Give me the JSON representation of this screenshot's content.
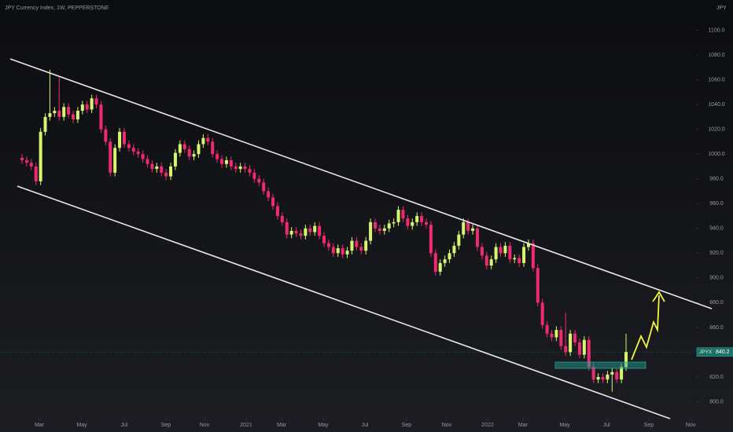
{
  "chart_data": {
    "type": "candlestick",
    "title": "JPY Currency Index, 1W, PEPPERSTONE",
    "currency": "JPY",
    "symbol": "JPYX",
    "colors": {
      "up": "#d8f56e",
      "down": "#f02a6f"
    },
    "grid": false,
    "xlim": [
      -4.74,
      145.06
    ],
    "xticks": [
      {
        "value": 3.72,
        "label": "Mar"
      },
      {
        "value": 12.86,
        "label": "May"
      },
      {
        "value": 22.0,
        "label": "Jul"
      },
      {
        "value": 30.97,
        "label": "Sep"
      },
      {
        "value": 39.27,
        "label": "Nov"
      },
      {
        "value": 48.24,
        "label": "2021"
      },
      {
        "value": 55.86,
        "label": "Mar"
      },
      {
        "value": 64.83,
        "label": "May"
      },
      {
        "value": 73.8,
        "label": "Jul"
      },
      {
        "value": 82.77,
        "label": "Sep"
      },
      {
        "value": 91.4,
        "label": "Nov"
      },
      {
        "value": 100.2,
        "label": "2022"
      },
      {
        "value": 107.8,
        "label": "Mar"
      },
      {
        "value": 116.8,
        "label": "May"
      },
      {
        "value": 125.8,
        "label": "Jul"
      },
      {
        "value": 134.9,
        "label": "Sep"
      },
      {
        "value": 143.9,
        "label": "Nov"
      }
    ],
    "ylim": [
      775.6,
      1124.4
    ],
    "yticks": [
      {
        "value": 800,
        "label": "800.0"
      },
      {
        "value": 820,
        "label": "820.0"
      },
      {
        "value": 840,
        "label": "840.0"
      },
      {
        "value": 860,
        "label": "860.0"
      },
      {
        "value": 880,
        "label": "880.0"
      },
      {
        "value": 900,
        "label": "900.0"
      },
      {
        "value": 920,
        "label": "920.0"
      },
      {
        "value": 940,
        "label": "940.0"
      },
      {
        "value": 960,
        "label": "960.0"
      },
      {
        "value": 980,
        "label": "980.0"
      },
      {
        "value": 1000,
        "label": "1000.0"
      },
      {
        "value": 1020,
        "label": "1020.0"
      },
      {
        "value": 1040,
        "label": "1040.0"
      },
      {
        "value": 1060,
        "label": "1060.0"
      },
      {
        "value": 1080,
        "label": "1080.0"
      },
      {
        "value": 1100,
        "label": "1100.0"
      }
    ],
    "open": [
      997,
      995,
      993,
      990,
      978,
      1018,
      1030,
      1033,
      1035,
      1030,
      1038,
      1032,
      1028,
      1035,
      1040,
      1036,
      1045,
      1040,
      1020,
      1010,
      985,
      1005,
      1018,
      1008,
      1005,
      1002,
      1000,
      996,
      992,
      988,
      990,
      985,
      982,
      990,
      1001,
      1008,
      1004,
      998,
      1000,
      1008,
      1013,
      1010,
      1000,
      996,
      992,
      995,
      990,
      988,
      990,
      988,
      985,
      980,
      977,
      970,
      965,
      958,
      950,
      945,
      935,
      938,
      936,
      934,
      940,
      937,
      942,
      934,
      928,
      925,
      920,
      924,
      919,
      922,
      930,
      925,
      922,
      930,
      945,
      940,
      938,
      940,
      944,
      945,
      955,
      948,
      942,
      945,
      950,
      945,
      943,
      920,
      905,
      912,
      915,
      920,
      926,
      935,
      945,
      938,
      940,
      925,
      918,
      910,
      915,
      925,
      920,
      926,
      915,
      916,
      912,
      925,
      928,
      908,
      880,
      862,
      855,
      852,
      858,
      845,
      840,
      855,
      848,
      838,
      850,
      828,
      818,
      820,
      818,
      822,
      824,
      818,
      828
    ],
    "high": [
      1000,
      998,
      996,
      993,
      1021,
      1033,
      1068,
      1038,
      1062,
      1041,
      1041,
      1035,
      1038,
      1043,
      1043,
      1048,
      1048,
      1043,
      1023,
      1013,
      1008,
      1021,
      1021,
      1011,
      1008,
      1005,
      1003,
      999,
      995,
      993,
      993,
      988,
      993,
      1004,
      1011,
      1011,
      1007,
      1003,
      1011,
      1016,
      1016,
      1013,
      1003,
      999,
      998,
      998,
      993,
      993,
      993,
      991,
      988,
      983,
      980,
      973,
      968,
      961,
      953,
      948,
      941,
      941,
      939,
      943,
      943,
      945,
      945,
      937,
      931,
      928,
      927,
      927,
      925,
      933,
      933,
      928,
      933,
      948,
      948,
      943,
      943,
      947,
      948,
      958,
      958,
      951,
      948,
      953,
      953,
      948,
      946,
      923,
      915,
      918,
      923,
      929,
      938,
      948,
      948,
      943,
      943,
      928,
      921,
      918,
      928,
      928,
      929,
      929,
      919,
      919,
      928,
      931,
      931,
      911,
      883,
      865,
      858,
      861,
      861,
      872,
      858,
      858,
      851,
      853,
      853,
      831,
      823,
      823,
      825,
      827,
      827,
      831,
      855
    ],
    "low": [
      992,
      990,
      987,
      975,
      975,
      1015,
      1027,
      1030,
      1027,
      1027,
      1029,
      1025,
      1025,
      1032,
      1033,
      1033,
      1037,
      1017,
      1007,
      982,
      982,
      1002,
      1005,
      1002,
      999,
      997,
      993,
      989,
      985,
      985,
      982,
      979,
      979,
      987,
      998,
      1001,
      995,
      995,
      997,
      1005,
      1007,
      997,
      993,
      989,
      989,
      987,
      985,
      985,
      985,
      982,
      977,
      974,
      967,
      962,
      955,
      947,
      942,
      932,
      932,
      933,
      931,
      931,
      934,
      934,
      931,
      925,
      922,
      917,
      917,
      916,
      916,
      919,
      922,
      919,
      919,
      927,
      937,
      935,
      935,
      937,
      941,
      942,
      945,
      939,
      939,
      942,
      942,
      940,
      917,
      902,
      902,
      909,
      912,
      917,
      923,
      932,
      935,
      935,
      922,
      915,
      907,
      907,
      912,
      917,
      917,
      912,
      912,
      909,
      909,
      922,
      905,
      877,
      859,
      852,
      849,
      849,
      842,
      837,
      837,
      845,
      835,
      835,
      825,
      815,
      815,
      815,
      815,
      808,
      815,
      815,
      825
    ],
    "close": [
      995,
      993,
      990,
      978,
      1018,
      1030,
      1033,
      1035,
      1030,
      1038,
      1032,
      1028,
      1035,
      1040,
      1036,
      1045,
      1040,
      1020,
      1010,
      985,
      1005,
      1018,
      1008,
      1005,
      1002,
      1000,
      996,
      992,
      988,
      990,
      985,
      982,
      990,
      1001,
      1008,
      1004,
      998,
      1000,
      1008,
      1013,
      1010,
      1000,
      996,
      992,
      995,
      990,
      988,
      990,
      988,
      985,
      980,
      977,
      970,
      965,
      958,
      950,
      945,
      935,
      938,
      936,
      934,
      940,
      937,
      942,
      934,
      928,
      925,
      920,
      924,
      919,
      922,
      930,
      925,
      922,
      930,
      945,
      940,
      938,
      940,
      944,
      945,
      955,
      948,
      942,
      945,
      950,
      945,
      943,
      920,
      905,
      912,
      915,
      920,
      926,
      935,
      945,
      938,
      940,
      925,
      918,
      910,
      915,
      925,
      920,
      926,
      915,
      916,
      912,
      925,
      928,
      908,
      880,
      862,
      855,
      852,
      858,
      845,
      840,
      855,
      848,
      838,
      850,
      828,
      818,
      820,
      818,
      822,
      824,
      818,
      828,
      840.2
    ]
  }
}
